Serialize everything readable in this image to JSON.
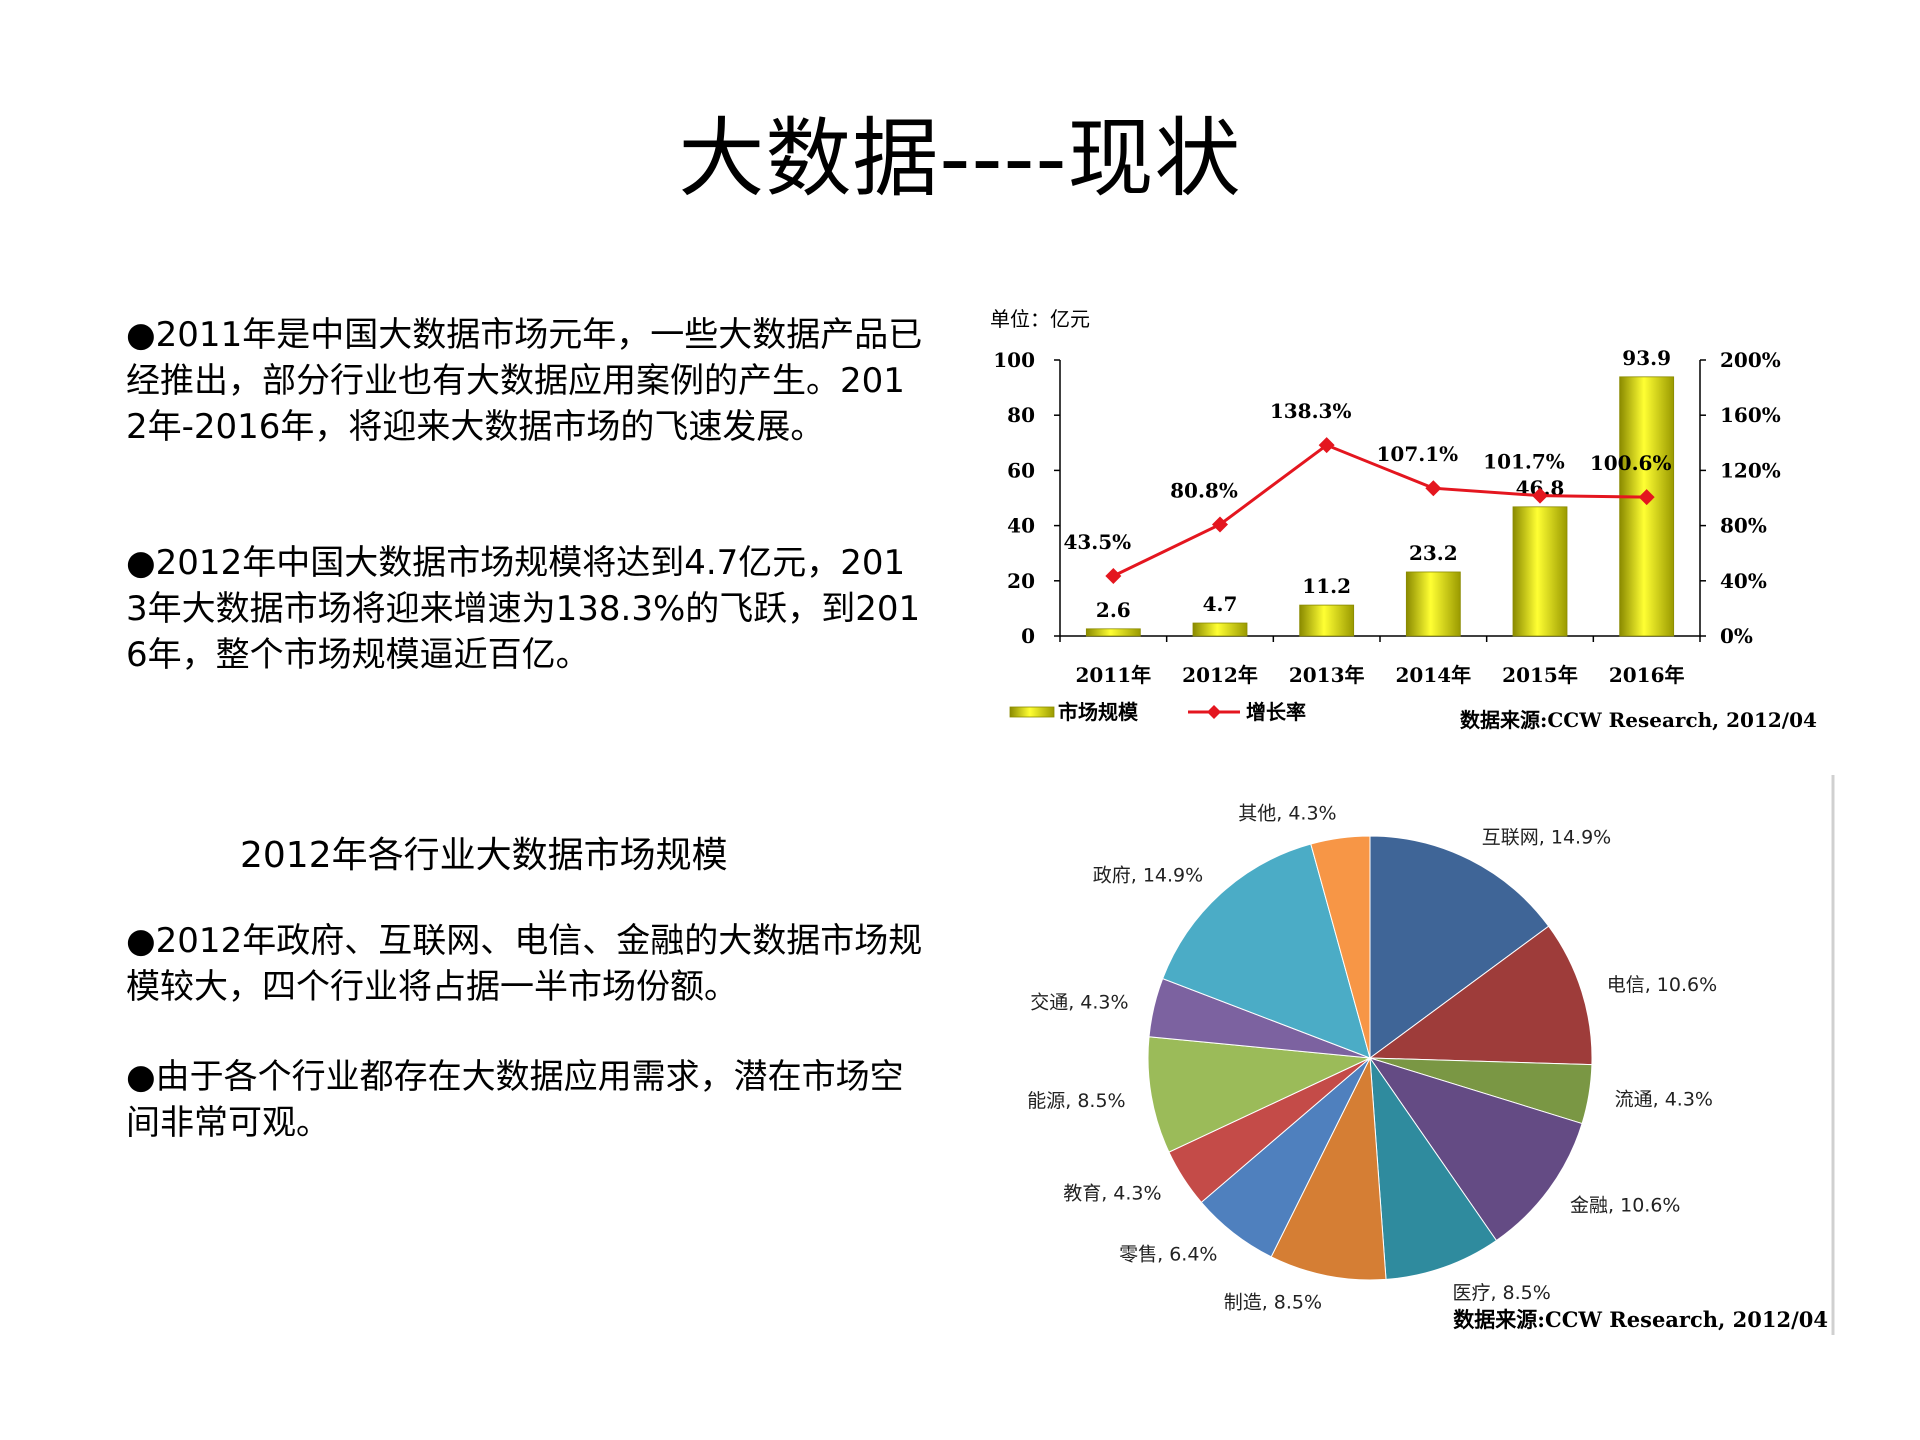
{
  "title": "大数据----现状",
  "paragraphs": [
    "●2011年是中国大数据市场元年，一些大数据产品已经推出，部分行业也有大数据应用案例的产生。2012年-2016年，将迎来大数据市场的飞速发展。",
    "●2012年中国大数据市场规模将达到4.7亿元，2013年大数据市场将迎来增速为138.3%的飞跃，到2016年，整个市场规模逼近百亿。",
    "●2012年政府、互联网、电信、金融的大数据市场规模较大，四个行业将占据一半市场份额。",
    "●由于各个行业都存在大数据应用需求，潜在市场空间非常可观。"
  ],
  "pie_caption": "2012年各行业大数据市场规模",
  "chart_data": [
    {
      "type": "bar",
      "unit_label": "单位：亿元",
      "categories": [
        "2011年",
        "2012年",
        "2013年",
        "2014年",
        "2015年",
        "2016年"
      ],
      "series": [
        {
          "name": "市场规模",
          "type": "bar",
          "values": [
            2.6,
            4.7,
            11.2,
            23.2,
            46.8,
            93.9
          ],
          "value_labels": [
            "2.6",
            "4.7",
            "11.2",
            "23.2",
            "46.8",
            "93.9"
          ],
          "color": "#c8c800"
        },
        {
          "name": "增长率",
          "type": "line",
          "values": [
            43.5,
            80.8,
            138.3,
            107.1,
            101.7,
            100.6
          ],
          "value_labels": [
            "43.5%",
            "80.8%",
            "138.3%",
            "107.1%",
            "101.7%",
            "100.6%"
          ],
          "color": "#e4161f"
        }
      ],
      "ylim": [
        0,
        100
      ],
      "yticks": [
        "0",
        "20",
        "40",
        "60",
        "80",
        "100"
      ],
      "y2lim": [
        0,
        200
      ],
      "y2ticks": [
        "0%",
        "40%",
        "80%",
        "120%",
        "160%",
        "200%"
      ],
      "source": "数据来源:CCW Research, 2012/04"
    },
    {
      "type": "pie",
      "slices": [
        {
          "label": "互联网, 14.9%",
          "value": 14.9,
          "color": "#3f6597"
        },
        {
          "label": "电信, 10.6%",
          "value": 10.6,
          "color": "#9e3c3a"
        },
        {
          "label": "流通, 4.3%",
          "value": 4.3,
          "color": "#7a9744"
        },
        {
          "label": "金融, 10.6%",
          "value": 10.6,
          "color": "#644b84"
        },
        {
          "label": "医疗, 8.5%",
          "value": 8.5,
          "color": "#2f8b9e"
        },
        {
          "label": "制造, 8.5%",
          "value": 8.5,
          "color": "#d57e34"
        },
        {
          "label": "零售, 6.4%",
          "value": 6.4,
          "color": "#4f80be"
        },
        {
          "label": "教育, 4.3%",
          "value": 4.3,
          "color": "#c44b48"
        },
        {
          "label": "能源, 8.5%",
          "value": 8.5,
          "color": "#9bbb59"
        },
        {
          "label": "交通, 4.3%",
          "value": 4.3,
          "color": "#7c62a0"
        },
        {
          "label": "政府, 14.9%",
          "value": 14.9,
          "color": "#4bacc6"
        },
        {
          "label": "其他, 4.3%",
          "value": 4.3,
          "color": "#f79646"
        }
      ],
      "source": "数据来源:CCW Research, 2012/04"
    }
  ]
}
